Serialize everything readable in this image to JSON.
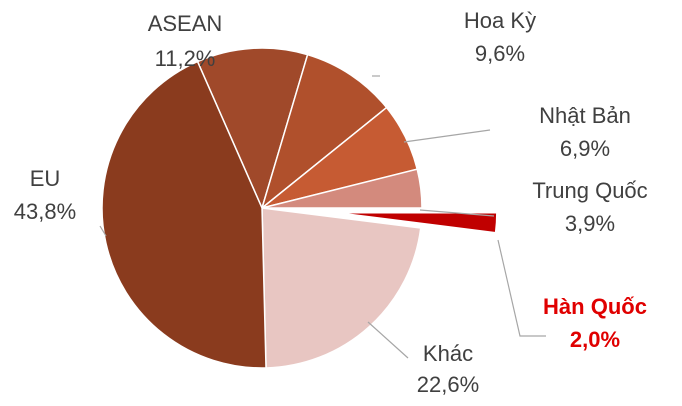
{
  "chart_data": {
    "type": "pie",
    "categories": [
      "ASEAN",
      "Hoa Kỳ",
      "Nhật Bản",
      "Trung Quốc",
      "Hàn Quốc",
      "Khác",
      "EU"
    ],
    "values": [
      11.2,
      9.6,
      6.9,
      3.9,
      2.0,
      22.6,
      43.8
    ],
    "value_labels": [
      "11,2%",
      "9,6%",
      "6,9%",
      "3,9%",
      "2,0%",
      "22,6%",
      "43,8%"
    ],
    "colors": [
      "#A0492A",
      "#B0502C",
      "#C65B33",
      "#D38A7D",
      "#C00000",
      "#E8C6C2",
      "#8A3B1E"
    ]
  }
}
